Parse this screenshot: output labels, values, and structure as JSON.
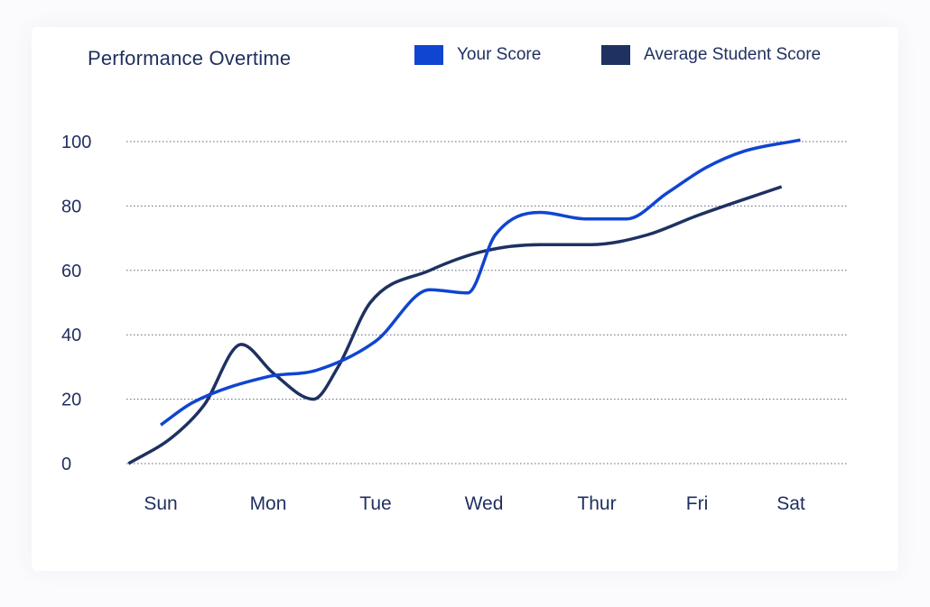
{
  "chart_data": {
    "type": "line",
    "title": "Performance Overtime",
    "xlabel": "",
    "ylabel": "",
    "categories": [
      "Sun",
      "Mon",
      "Tue",
      "Wed",
      "Thur",
      "Fri",
      "Sat"
    ],
    "yticks": [
      0,
      20,
      40,
      60,
      80,
      100
    ],
    "ylim": [
      0,
      100
    ],
    "grid": "dotted horizontal",
    "legend_position": "top-right",
    "series": [
      {
        "name": "Your Score",
        "color": "#0f45d1",
        "x": [
          0.0,
          0.3,
          1.0,
          1.45,
          2.0,
          2.5,
          2.85,
          3.1,
          3.5,
          3.9,
          4.3,
          4.7,
          5.1,
          5.5,
          6.1
        ],
        "values": [
          12,
          19,
          27,
          29,
          38,
          54,
          53,
          71,
          78,
          76,
          76,
          84,
          92,
          97,
          100.5
        ]
      },
      {
        "name": "Average Student Score",
        "color": "#1e3161",
        "x": [
          -0.3,
          0.1,
          0.4,
          0.75,
          1.05,
          1.42,
          1.65,
          1.95,
          2.5,
          3.0,
          3.5,
          3.95,
          4.5,
          5.0,
          5.9
        ],
        "values": [
          0,
          8,
          18,
          37,
          28,
          20,
          30,
          50,
          60,
          66,
          68,
          68,
          71,
          77,
          86
        ]
      }
    ]
  }
}
